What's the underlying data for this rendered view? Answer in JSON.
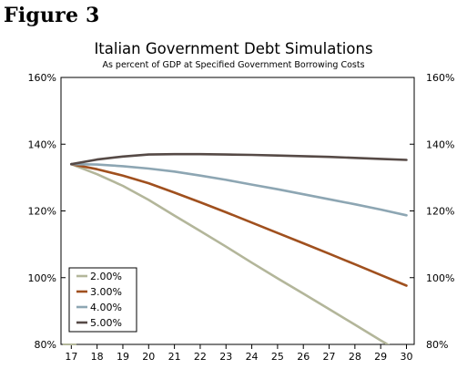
{
  "figure_label": "Figure 3",
  "chart_data": {
    "type": "line",
    "title": "Italian Government Debt Simulations",
    "subtitle": "As percent of GDP at Specified Government Borrowing Costs",
    "xlabel": "",
    "ylabel": "",
    "x": [
      17,
      18,
      19,
      20,
      21,
      22,
      23,
      24,
      25,
      26,
      27,
      28,
      29,
      30
    ],
    "x_tick_labels": [
      "17",
      "18",
      "19",
      "20",
      "21",
      "22",
      "23",
      "24",
      "25",
      "26",
      "27",
      "28",
      "29",
      "30"
    ],
    "ylim": [
      80,
      160
    ],
    "y_ticks": [
      80,
      100,
      120,
      140,
      160
    ],
    "y_tick_labels": [
      "80%",
      "100%",
      "120%",
      "140%",
      "160%"
    ],
    "grid": false,
    "legend_position": "bottom-left",
    "series": [
      {
        "name": "2.00%",
        "color": "#b3b69a",
        "values": [
          134.0,
          131.0,
          127.5,
          123.3,
          118.6,
          114.0,
          109.3,
          104.5,
          99.8,
          95.2,
          90.6,
          85.9,
          81.2,
          76.7
        ]
      },
      {
        "name": "3.00%",
        "color": "#a0501e",
        "values": [
          134.0,
          132.5,
          130.6,
          128.3,
          125.5,
          122.6,
          119.6,
          116.5,
          113.4,
          110.3,
          107.2,
          104.0,
          100.8,
          97.6
        ]
      },
      {
        "name": "4.00%",
        "color": "#8da6b3",
        "values": [
          134.0,
          133.9,
          133.4,
          132.7,
          131.8,
          130.6,
          129.3,
          127.9,
          126.5,
          125.0,
          123.5,
          122.0,
          120.4,
          118.7
        ]
      },
      {
        "name": "5.00%",
        "color": "#564a46",
        "values": [
          134.0,
          135.4,
          136.3,
          136.9,
          137.0,
          137.0,
          136.9,
          136.8,
          136.6,
          136.4,
          136.2,
          135.9,
          135.6,
          135.3
        ]
      }
    ]
  }
}
